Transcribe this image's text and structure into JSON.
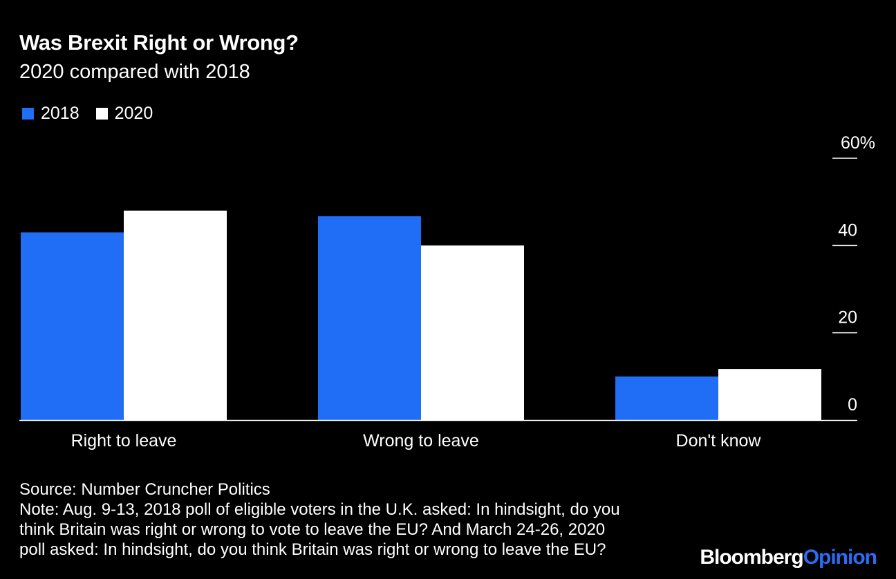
{
  "header": {
    "title": "Was Brexit Right or Wrong?",
    "subtitle": "2020 compared with 2018"
  },
  "legend": [
    {
      "label": "2018",
      "color": "#1F6EF5"
    },
    {
      "label": "2020",
      "color": "#FFFFFF"
    }
  ],
  "chart_data": {
    "type": "bar",
    "title": "Was Brexit Right or Wrong?",
    "subtitle": "2020 compared with 2018",
    "categories": [
      "Right to leave",
      "Wrong to leave",
      "Don't know"
    ],
    "series": [
      {
        "name": "2018",
        "values": [
          43,
          46.7,
          10
        ],
        "color": "#1F6EF5"
      },
      {
        "name": "2020",
        "values": [
          48,
          40,
          11.7
        ],
        "color": "#FFFFFF"
      }
    ],
    "ylim": [
      0,
      60
    ],
    "yticks": [
      0,
      20,
      40,
      60
    ],
    "ytick_labels": [
      "0",
      "20",
      "40",
      "60%"
    ],
    "y_axis_side": "right",
    "legend_position": "top-left",
    "grid": false
  },
  "footer": {
    "source": "Source: Number Cruncher Politics",
    "note_lines": [
      "Note: Aug. 9-13, 2018 poll of eligible voters in the U.K. asked: In hindsight, do you",
      "think Britain was right or wrong to vote to leave the EU? And March 24-26, 2020",
      "poll asked: In hindsight, do you think Britain was right or wrong to leave the EU?"
    ]
  },
  "branding": {
    "name": "Bloomberg",
    "suffix": "Opinion"
  }
}
